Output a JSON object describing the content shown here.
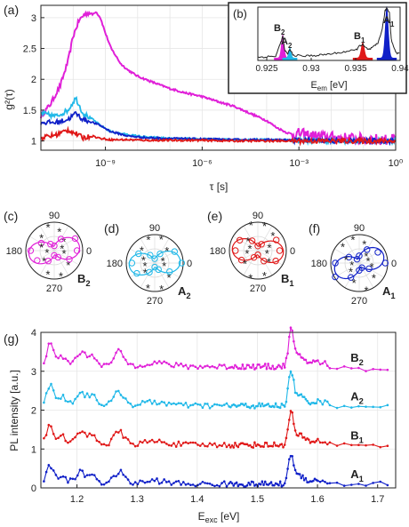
{
  "colors": {
    "B2": "#e020d8",
    "A2": "#20b8e8",
    "B1": "#e01818",
    "A1": "#1020c8",
    "inset_line": "#222222",
    "axis": "#222222"
  },
  "panel_labels": {
    "a": "(a)",
    "b": "(b)",
    "c": "(c)",
    "d": "(d)",
    "e": "(e)",
    "f": "(f)",
    "g": "(g)"
  },
  "chart_data": [
    {
      "id": "a",
      "type": "line",
      "xscale": "log",
      "xlabel": "τ [s]",
      "ylabel": "g²(τ)",
      "xlim": [
        1e-11,
        1
      ],
      "ylim": [
        0.85,
        3.2
      ],
      "xticks": [
        1e-09,
        1e-06,
        0.001,
        1
      ],
      "xtick_labels": [
        "10⁻⁹",
        "10⁻⁶",
        "10⁻³",
        "10⁰"
      ],
      "yticks": [
        1,
        1.5,
        2,
        2.5,
        3
      ],
      "ytick_labels": [
        "1",
        "1.5",
        "2",
        "2.5",
        "3"
      ],
      "grid": true,
      "series": [
        {
          "name": "B2",
          "x": [
            1e-11,
            2e-11,
            4e-11,
            7e-11,
            1e-10,
            1.5e-10,
            2.2e-10,
            3e-10,
            4e-10,
            5e-10,
            7e-10,
            1e-09,
            1.5e-09,
            2e-09,
            3e-09,
            5e-09,
            1e-08,
            3e-08,
            1e-07,
            3e-07,
            1e-06,
            3e-06,
            1e-05,
            3e-05,
            0.0001,
            0.0002,
            0.0004,
            0.0007,
            0.001,
            0.003,
            0.01,
            0.1,
            1
          ],
          "y": [
            1.4,
            1.6,
            1.9,
            2.3,
            2.7,
            2.95,
            3.05,
            3.08,
            3.05,
            3.1,
            3.0,
            2.75,
            2.5,
            2.4,
            2.25,
            2.15,
            2.05,
            1.95,
            1.85,
            1.78,
            1.72,
            1.64,
            1.56,
            1.45,
            1.33,
            1.22,
            1.14,
            1.1,
            1.12,
            1.08,
            1.06,
            1.03,
            1.02
          ]
        },
        {
          "name": "A2",
          "x": [
            1e-11,
            3e-11,
            7e-11,
            1.2e-10,
            2e-10,
            4e-10,
            7e-10,
            1.5e-09,
            5e-09,
            2e-08,
            1e-07,
            1e-06,
            1e-05,
            0.0001,
            0.001,
            0.01,
            1
          ],
          "y": [
            1.45,
            1.4,
            1.5,
            1.7,
            1.45,
            1.35,
            1.25,
            1.15,
            1.1,
            1.06,
            1.04,
            1.03,
            1.02,
            1.02,
            1.01,
            1.0,
            1.0
          ]
        },
        {
          "name": "A1",
          "x": [
            1e-11,
            3e-11,
            7e-11,
            1.2e-10,
            2e-10,
            4e-10,
            7e-10,
            1.5e-09,
            5e-09,
            2e-08,
            1e-07,
            1e-06,
            1e-05,
            0.0001,
            0.001,
            0.01,
            1
          ],
          "y": [
            1.3,
            1.3,
            1.35,
            1.45,
            1.35,
            1.3,
            1.25,
            1.15,
            1.08,
            1.05,
            1.04,
            1.03,
            1.02,
            1.02,
            1.01,
            1.0,
            1.0
          ]
        },
        {
          "name": "B1",
          "x": [
            1e-11,
            3e-11,
            7e-11,
            1.2e-10,
            2e-10,
            4e-10,
            7e-10,
            1.5e-09,
            5e-09,
            2e-08,
            1e-07,
            1e-06,
            1e-05,
            0.0001,
            0.001,
            0.01,
            1
          ],
          "y": [
            1.05,
            1.1,
            1.18,
            1.12,
            1.05,
            1.08,
            1.04,
            1.02,
            1.02,
            1.01,
            1.01,
            1.01,
            1.0,
            1.0,
            1.0,
            1.0,
            1.0
          ]
        }
      ]
    },
    {
      "id": "b",
      "type": "area",
      "xlabel": "E",
      "xlabel_sub": "em",
      "xlabel_unit": " [eV]",
      "xlim": [
        0.924,
        0.94
      ],
      "xticks": [
        0.925,
        0.93,
        0.935,
        0.94
      ],
      "xtick_labels": [
        "0.925",
        "0.93",
        "0.935",
        "0.94"
      ],
      "ylim": [
        0,
        1
      ],
      "spectrum": {
        "x": [
          0.924,
          0.925,
          0.926,
          0.9265,
          0.9268,
          0.927,
          0.9273,
          0.9276,
          0.928,
          0.929,
          0.93,
          0.931,
          0.932,
          0.933,
          0.934,
          0.935,
          0.9355,
          0.9358,
          0.936,
          0.9365,
          0.937,
          0.9375,
          0.938,
          0.9383,
          0.9385,
          0.9388,
          0.939,
          0.9395,
          0.94
        ],
        "y": [
          0.06,
          0.07,
          0.08,
          0.3,
          0.45,
          0.2,
          0.12,
          0.2,
          0.1,
          0.08,
          0.09,
          0.1,
          0.12,
          0.14,
          0.17,
          0.19,
          0.28,
          0.3,
          0.25,
          0.2,
          0.25,
          0.32,
          0.6,
          0.92,
          0.98,
          0.9,
          0.4,
          0.15,
          0.12
        ]
      },
      "peaks": [
        {
          "name": "B2",
          "center": 0.9268,
          "width": 0.00035,
          "height": 0.45,
          "label": "B",
          "sub": "2"
        },
        {
          "name": "A2",
          "center": 0.9276,
          "width": 0.0003,
          "height": 0.2,
          "label": "A",
          "sub": "2"
        },
        {
          "name": "B1",
          "center": 0.9358,
          "width": 0.0004,
          "height": 0.3,
          "label": "B",
          "sub": "1"
        },
        {
          "name": "A1",
          "center": 0.9385,
          "width": 0.0004,
          "height": 0.98,
          "label": "A",
          "sub": "1"
        }
      ]
    },
    {
      "id": "polar",
      "type": "scatter",
      "angle_labels": [
        "90",
        "0",
        "270",
        "180"
      ],
      "plots": [
        {
          "panel": "c",
          "name": "B2",
          "label": "B",
          "sub": "2",
          "angle_offset": 10
        },
        {
          "panel": "d",
          "name": "A2",
          "label": "A",
          "sub": "2",
          "angle_offset": 5
        },
        {
          "panel": "e",
          "name": "B1",
          "label": "B",
          "sub": "1",
          "angle_offset": -5
        },
        {
          "panel": "f",
          "name": "A1",
          "label": "A",
          "sub": "1",
          "angle_offset": 20
        }
      ]
    },
    {
      "id": "g",
      "type": "line",
      "xlabel": "E",
      "xlabel_sub": "exc",
      "xlabel_unit": " [eV]",
      "ylabel": "PL intensity [a.u.]",
      "xlim": [
        1.14,
        1.73
      ],
      "ylim": [
        0,
        4
      ],
      "xticks": [
        1.2,
        1.3,
        1.4,
        1.5,
        1.6,
        1.7
      ],
      "xtick_labels": [
        "1.2",
        "1.3",
        "1.4",
        "1.5",
        "1.6",
        "1.7"
      ],
      "yticks": [
        0,
        1,
        2,
        3,
        4
      ],
      "ytick_labels": [
        "0",
        "1",
        "2",
        "3",
        "4"
      ],
      "grid": true,
      "series": [
        {
          "name": "B2",
          "label": "B",
          "sub": "2",
          "offset": 3
        },
        {
          "name": "A2",
          "label": "A",
          "sub": "2",
          "offset": 2
        },
        {
          "name": "B1",
          "label": "B",
          "sub": "1",
          "offset": 1
        },
        {
          "name": "A1",
          "label": "A",
          "sub": "1",
          "offset": 0
        }
      ]
    }
  ]
}
